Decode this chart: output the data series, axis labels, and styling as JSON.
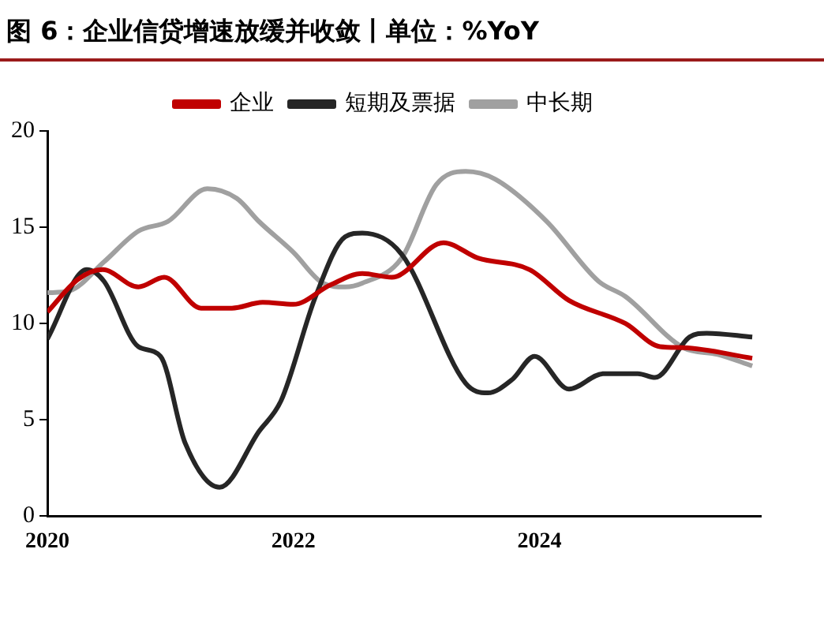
{
  "chart_data": {
    "type": "line",
    "title": "图 6：企业信贷增速放缓并收敛丨单位：%YoY",
    "xlim": [
      2020,
      2025.8
    ],
    "xticks": [
      2020,
      2022,
      2024
    ],
    "ylim": [
      0,
      20
    ],
    "yticks": [
      0,
      5,
      10,
      15,
      20
    ],
    "grid": false,
    "legend": "top",
    "marker": "none",
    "line_style": "solid",
    "series": [
      {
        "name": "企业",
        "color": "#c00000",
        "x": [
          2020,
          2020.25,
          2020.45,
          2020.74,
          2020.95,
          2021.25,
          2021.5,
          2021.75,
          2022,
          2022.3,
          2022.56,
          2022.8,
          2023.22,
          2023.5,
          2023.92,
          2024.24,
          2024.7,
          2024.98,
          2025.17,
          2025.73
        ],
        "values": [
          10.6,
          12.3,
          12.8,
          11.9,
          12.4,
          10.8,
          10.8,
          11.1,
          11,
          12,
          12.6,
          12.4,
          14.2,
          13.4,
          12.8,
          11.2,
          10,
          8.8,
          8.75,
          8.2
        ]
      },
      {
        "name": "短期及票据",
        "color": "#262626",
        "x": [
          2020,
          2020.32,
          2020.46,
          2020.74,
          2020.92,
          2021.12,
          2021.4,
          2021.72,
          2021.9,
          2022.18,
          2022.42,
          2022.56,
          2022.88,
          2023.4,
          2023.58,
          2023.78,
          2023.96,
          2024.24,
          2024.52,
          2024.8,
          2024.94,
          2025.22,
          2025.36,
          2025.73
        ],
        "values": [
          9.2,
          12.8,
          12.2,
          8.8,
          8.3,
          3.8,
          1.5,
          4.4,
          6,
          11.4,
          14.5,
          14.7,
          13.6,
          6.9,
          6.4,
          7.1,
          8.3,
          6.6,
          7.4,
          7.4,
          7.2,
          9.3,
          9.5,
          9.3
        ]
      },
      {
        "name": "中长期",
        "color": "#a0a0a0",
        "x": [
          2020,
          2020.18,
          2020.46,
          2020.74,
          2020.98,
          2021.3,
          2021.54,
          2021.72,
          2022,
          2022.24,
          2022.42,
          2022.56,
          2022.88,
          2023.16,
          2023.4,
          2023.64,
          2024.06,
          2024.48,
          2024.7,
          2025.17,
          2025.45,
          2025.73
        ],
        "values": [
          11.6,
          11.7,
          13.2,
          14.8,
          15.3,
          17,
          16.5,
          15.3,
          13.7,
          12.1,
          11.9,
          12.1,
          13.4,
          17.2,
          17.9,
          17.5,
          15.3,
          12.2,
          11.4,
          8.75,
          8.4,
          7.8
        ]
      }
    ]
  }
}
